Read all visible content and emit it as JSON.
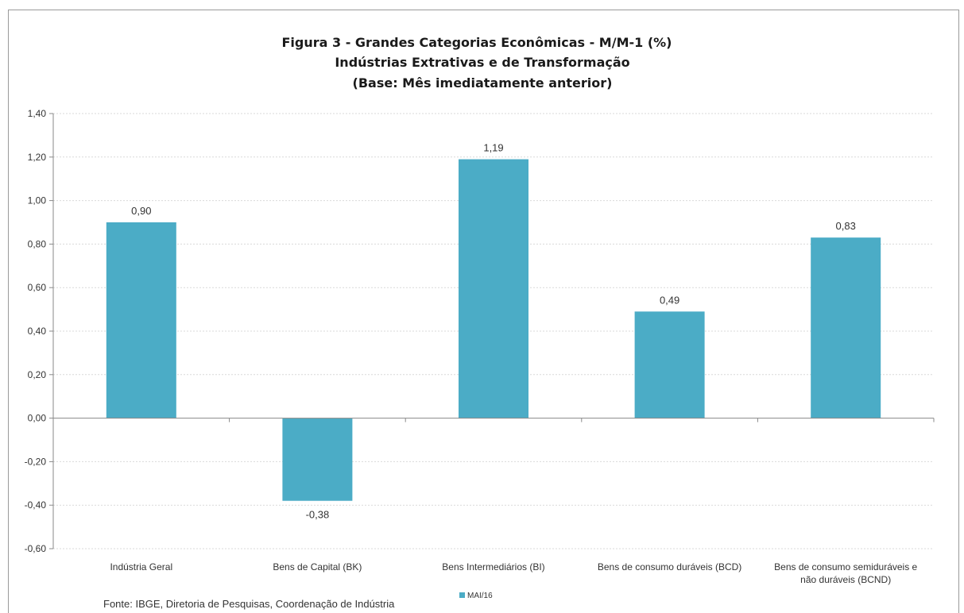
{
  "chart_data": {
    "type": "bar",
    "title": [
      "Figura 3 - Grandes Categorias Econômicas - M/M-1 (%)",
      "Indústrias  Extrativas e de Transformação",
      "(Base: Mês imediatamente anterior)"
    ],
    "categories": [
      [
        "Indústria Geral"
      ],
      [
        "Bens de Capital (BK)"
      ],
      [
        "Bens Intermediários (BI)"
      ],
      [
        "Bens de consumo duráveis (BCD)"
      ],
      [
        "Bens de consumo semiduráveis e",
        "não duráveis (BCND)"
      ]
    ],
    "series": [
      {
        "name": "MAI/16",
        "values": [
          0.9,
          -0.38,
          1.19,
          0.49,
          0.83
        ],
        "color": "#4BACC6"
      }
    ],
    "data_labels": [
      "0,90",
      "-0,38",
      "1,19",
      "0,49",
      "0,83"
    ],
    "ylim": [
      -0.6,
      1.4
    ],
    "yticks": [
      -0.6,
      -0.4,
      -0.2,
      0.0,
      0.2,
      0.4,
      0.6,
      0.8,
      1.0,
      1.2,
      1.4
    ],
    "ytick_labels": [
      "-0,60",
      "-0,40",
      "-0,20",
      "0,00",
      "0,20",
      "0,40",
      "0,60",
      "0,80",
      "1,00",
      "1,20",
      "1,40"
    ],
    "grid": true,
    "legend_position": "bottom",
    "source": "Fonte: IBGE, Diretoria de Pesquisas, Coordenação de Indústria"
  }
}
